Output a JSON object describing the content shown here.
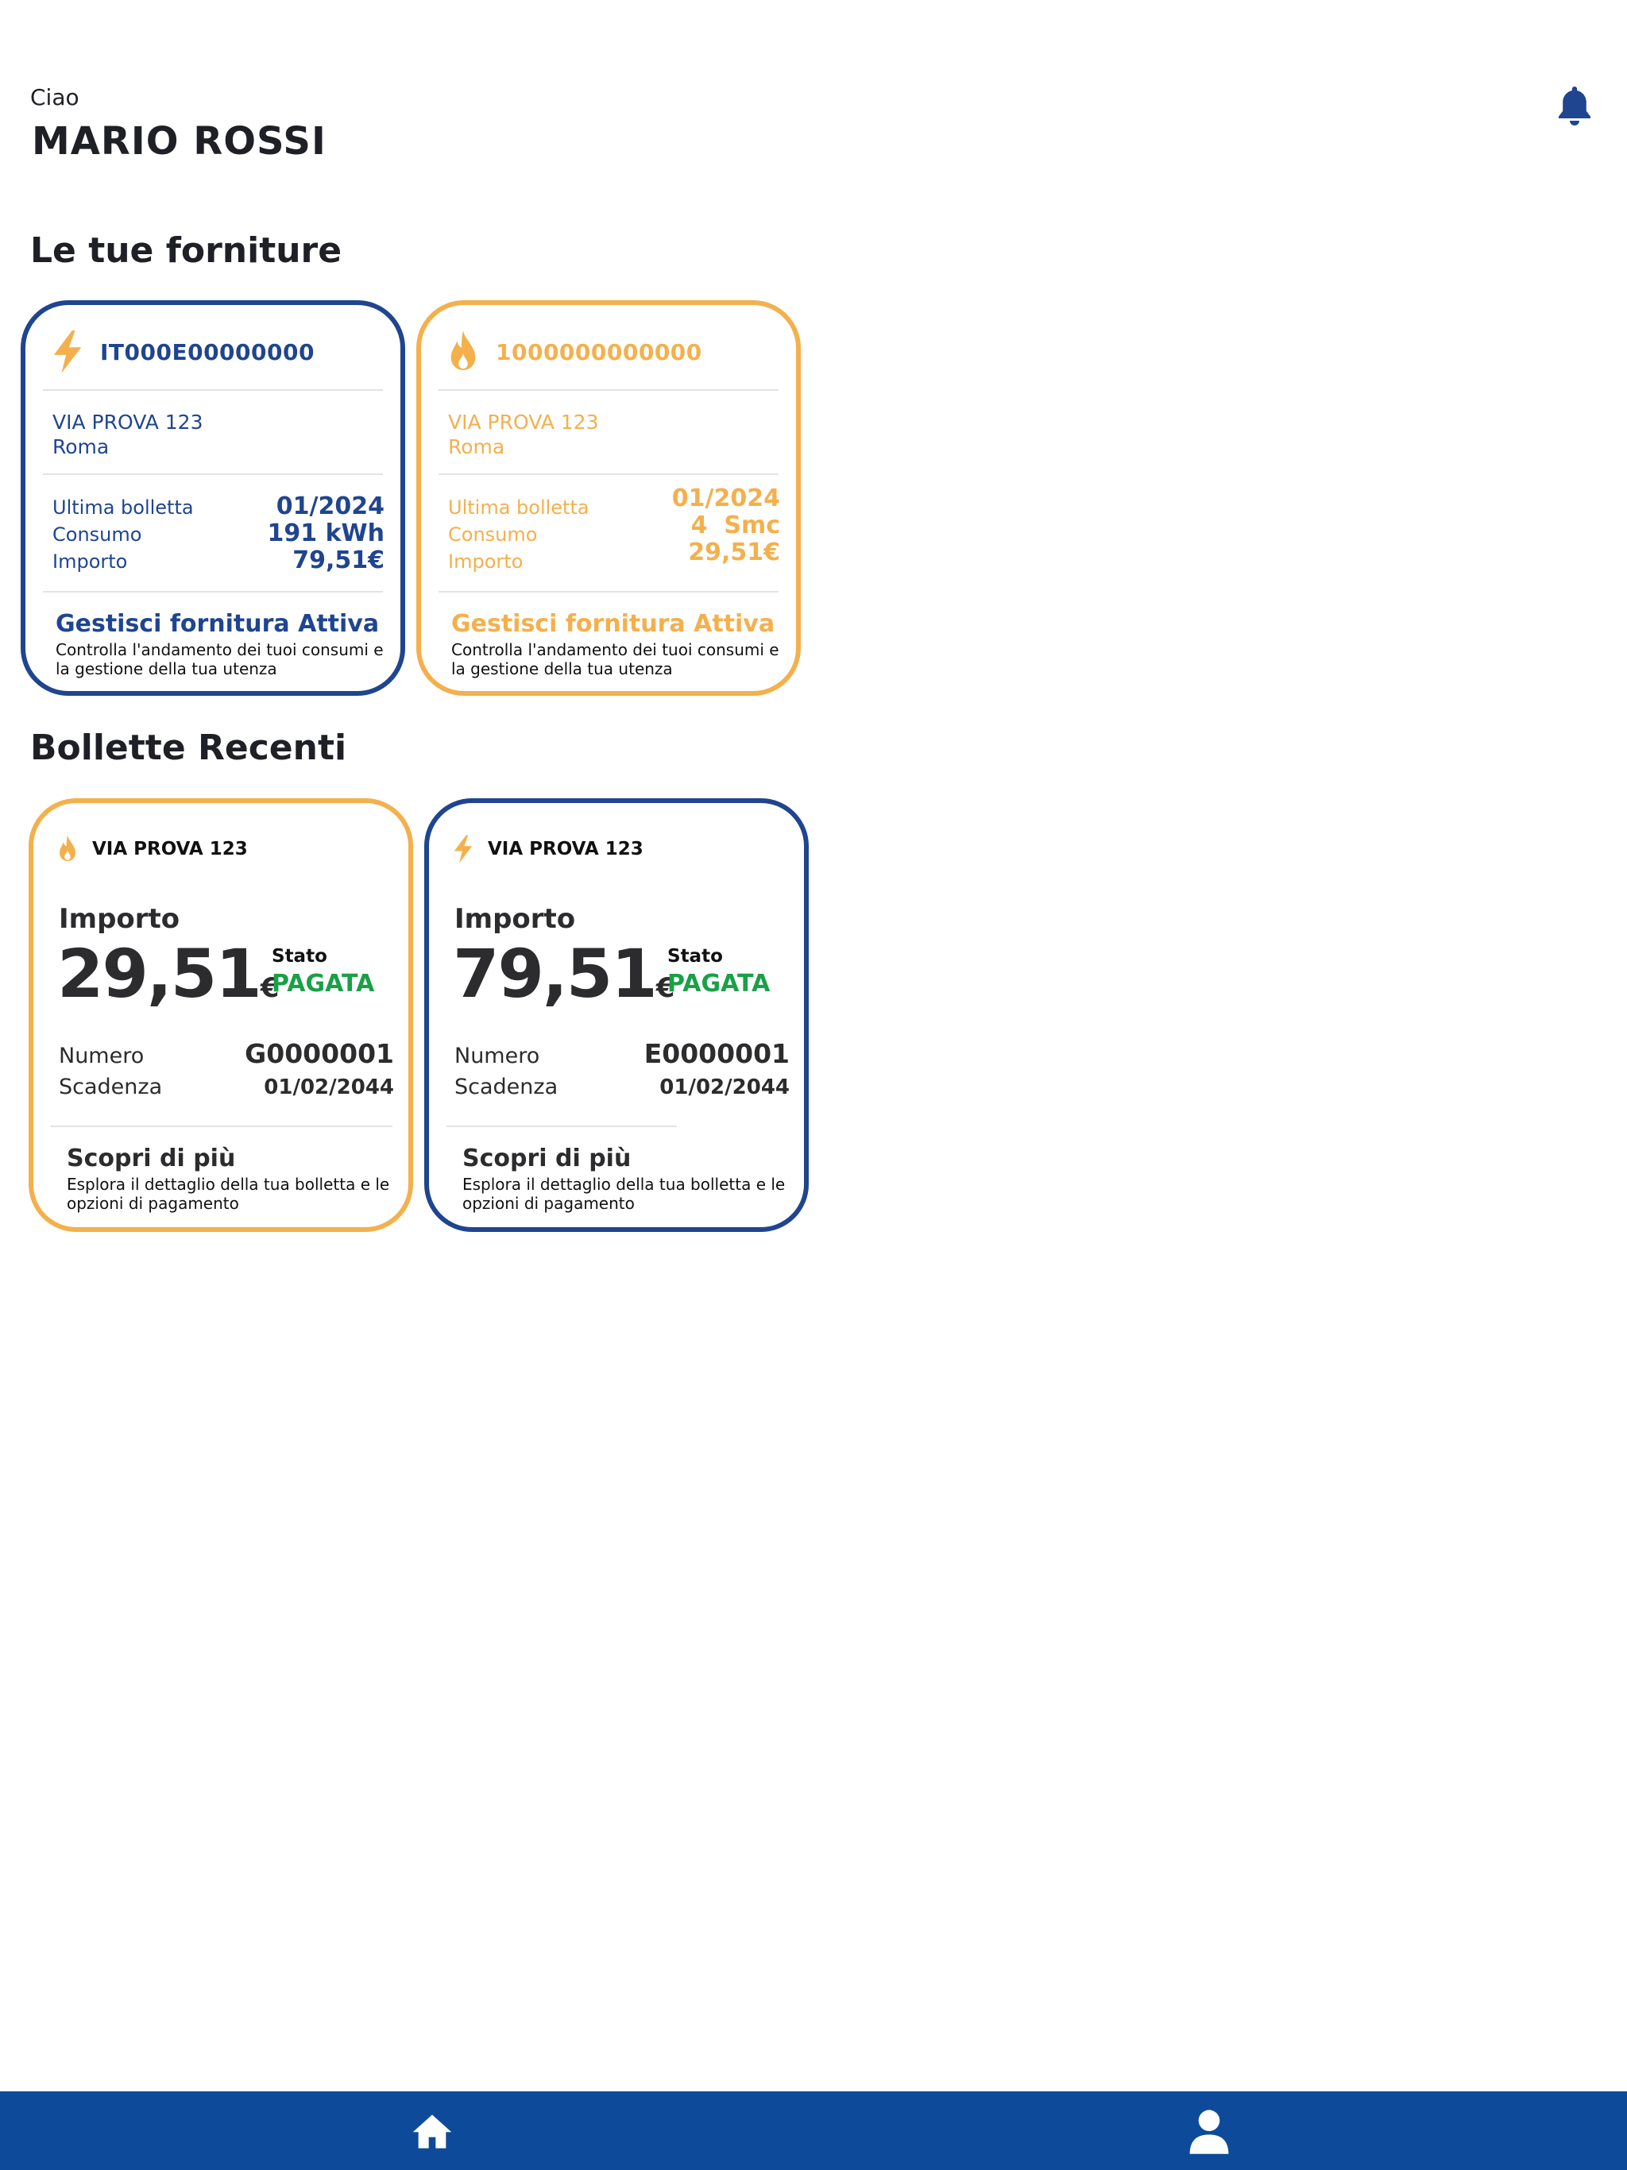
{
  "header": {
    "greeting": "Ciao",
    "user_name": "MARIO ROSSI",
    "notification_icon": "bell-icon"
  },
  "colors": {
    "electricity": "#1f4590",
    "gas": "#f4b04c",
    "paid": "#1aa047",
    "nav_bar": "#0d4a99"
  },
  "supplies": {
    "title": "Le tue forniture",
    "items": [
      {
        "type_icon": "lightning-icon",
        "code": "IT000E00000000",
        "address_line1": "VIA PROVA 123",
        "address_line2": "Roma",
        "last_bill_label": "Ultima bolletta",
        "last_bill_value": "01/2024",
        "consumption_label": "Consumo",
        "consumption_value": "191 kWh",
        "amount_label": "Importo",
        "amount_value": "79,51€",
        "manage_label": "Gestisci fornitura Attiva",
        "manage_desc": "Controlla l'andamento dei tuoi consumi e la gestione della tua utenza"
      },
      {
        "type_icon": "flame-icon",
        "code": "1000000000000",
        "address_line1": "VIA PROVA 123",
        "address_line2": "Roma",
        "last_bill_label": "Ultima bolletta",
        "last_bill_value": "01/2024",
        "consumption_label": "Consumo",
        "consumption_value": "4  Smc",
        "amount_label": "Importo",
        "amount_value": "29,51€",
        "manage_label": "Gestisci fornitura Attiva",
        "manage_desc": "Controlla l'andamento dei tuoi consumi e la gestione della tua utenza"
      }
    ]
  },
  "bills": {
    "title": "Bollette Recenti",
    "items": [
      {
        "type_icon": "flame-icon",
        "address": "VIA PROVA 123",
        "amount_label": "Importo",
        "amount": "29,51",
        "currency": "€",
        "status_label": "Stato",
        "status": "PAGATA",
        "number_label": "Numero",
        "number": "G0000001",
        "due_label": "Scadenza",
        "due_date": "01/02/2044",
        "more_label": "Scopri di più",
        "more_desc": "Esplora il dettaglio della tua bolletta e le opzioni di pagamento"
      },
      {
        "type_icon": "lightning-icon",
        "address": "VIA PROVA 123",
        "amount_label": "Importo",
        "amount": "79,51",
        "currency": "€",
        "status_label": "Stato",
        "status": "PAGATA",
        "number_label": "Numero",
        "number": "E0000001",
        "due_label": "Scadenza",
        "due_date": "01/02/2044",
        "more_label": "Scopri di più",
        "more_desc": "Esplora il dettaglio della tua bolletta e le opzioni di pagamento"
      }
    ]
  },
  "bottom_nav": {
    "items": [
      {
        "icon": "home-icon"
      },
      {
        "icon": "profile-icon"
      }
    ]
  }
}
